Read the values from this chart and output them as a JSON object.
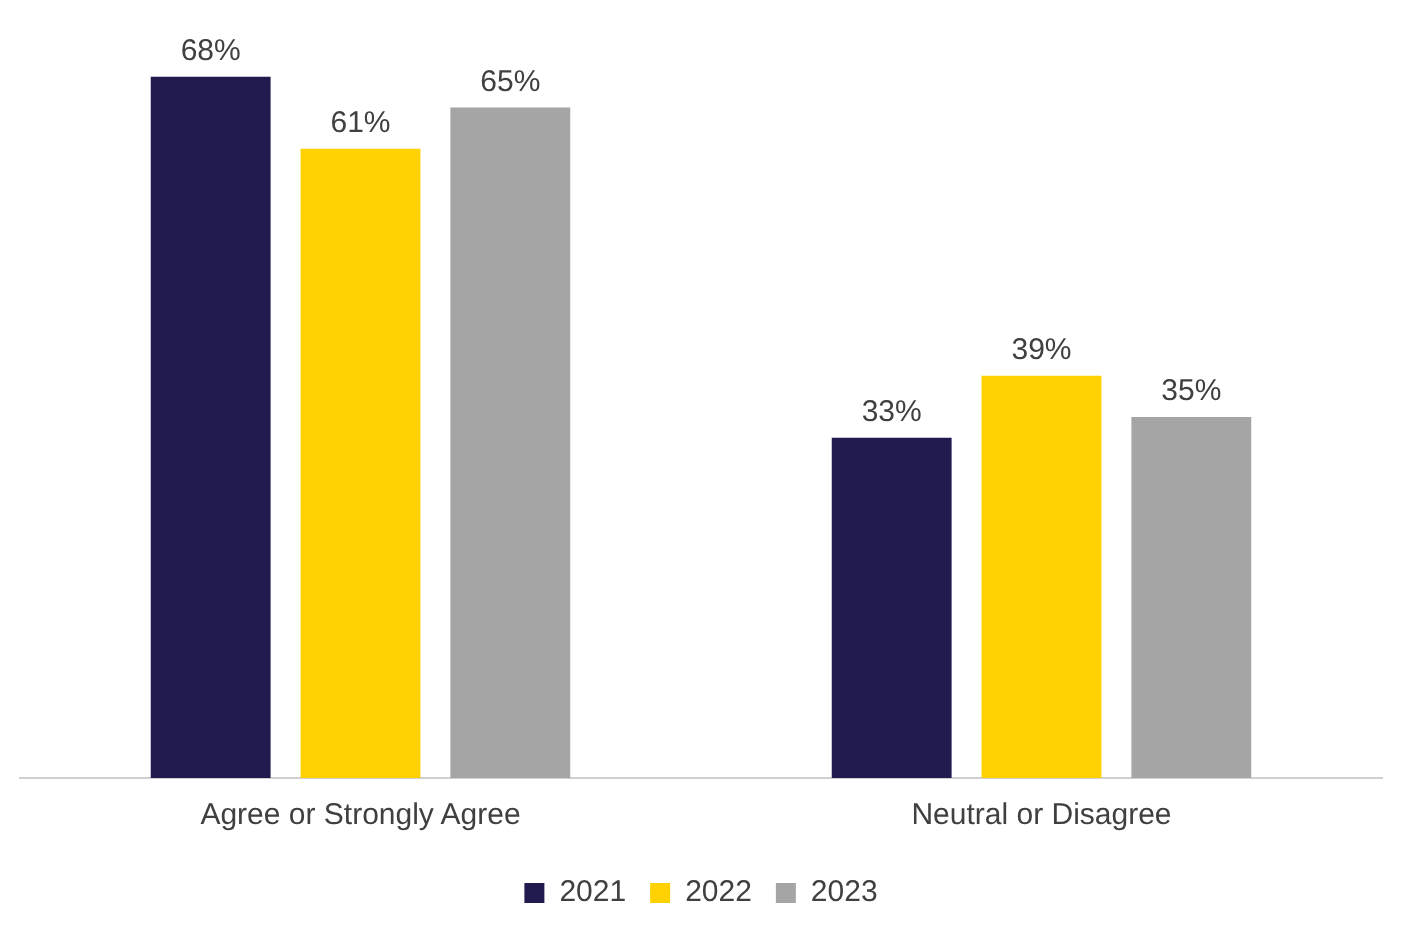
{
  "chart_data": {
    "type": "bar",
    "categories": [
      "Agree or Strongly Agree",
      "Neutral or Disagree"
    ],
    "series": [
      {
        "name": "2021",
        "color": "#201a4f",
        "values": [
          68,
          33
        ],
        "value_labels": [
          "68%",
          "33%"
        ]
      },
      {
        "name": "2022",
        "color": "#ffd100",
        "values": [
          61,
          39
        ],
        "value_labels": [
          "61%",
          "39%"
        ]
      },
      {
        "name": "2023",
        "color": "#a5a5a5",
        "values": [
          65,
          35
        ],
        "value_labels": [
          "65%",
          "35%"
        ]
      }
    ],
    "tick_labels": "x",
    "grid": false,
    "legend": "bottom"
  }
}
